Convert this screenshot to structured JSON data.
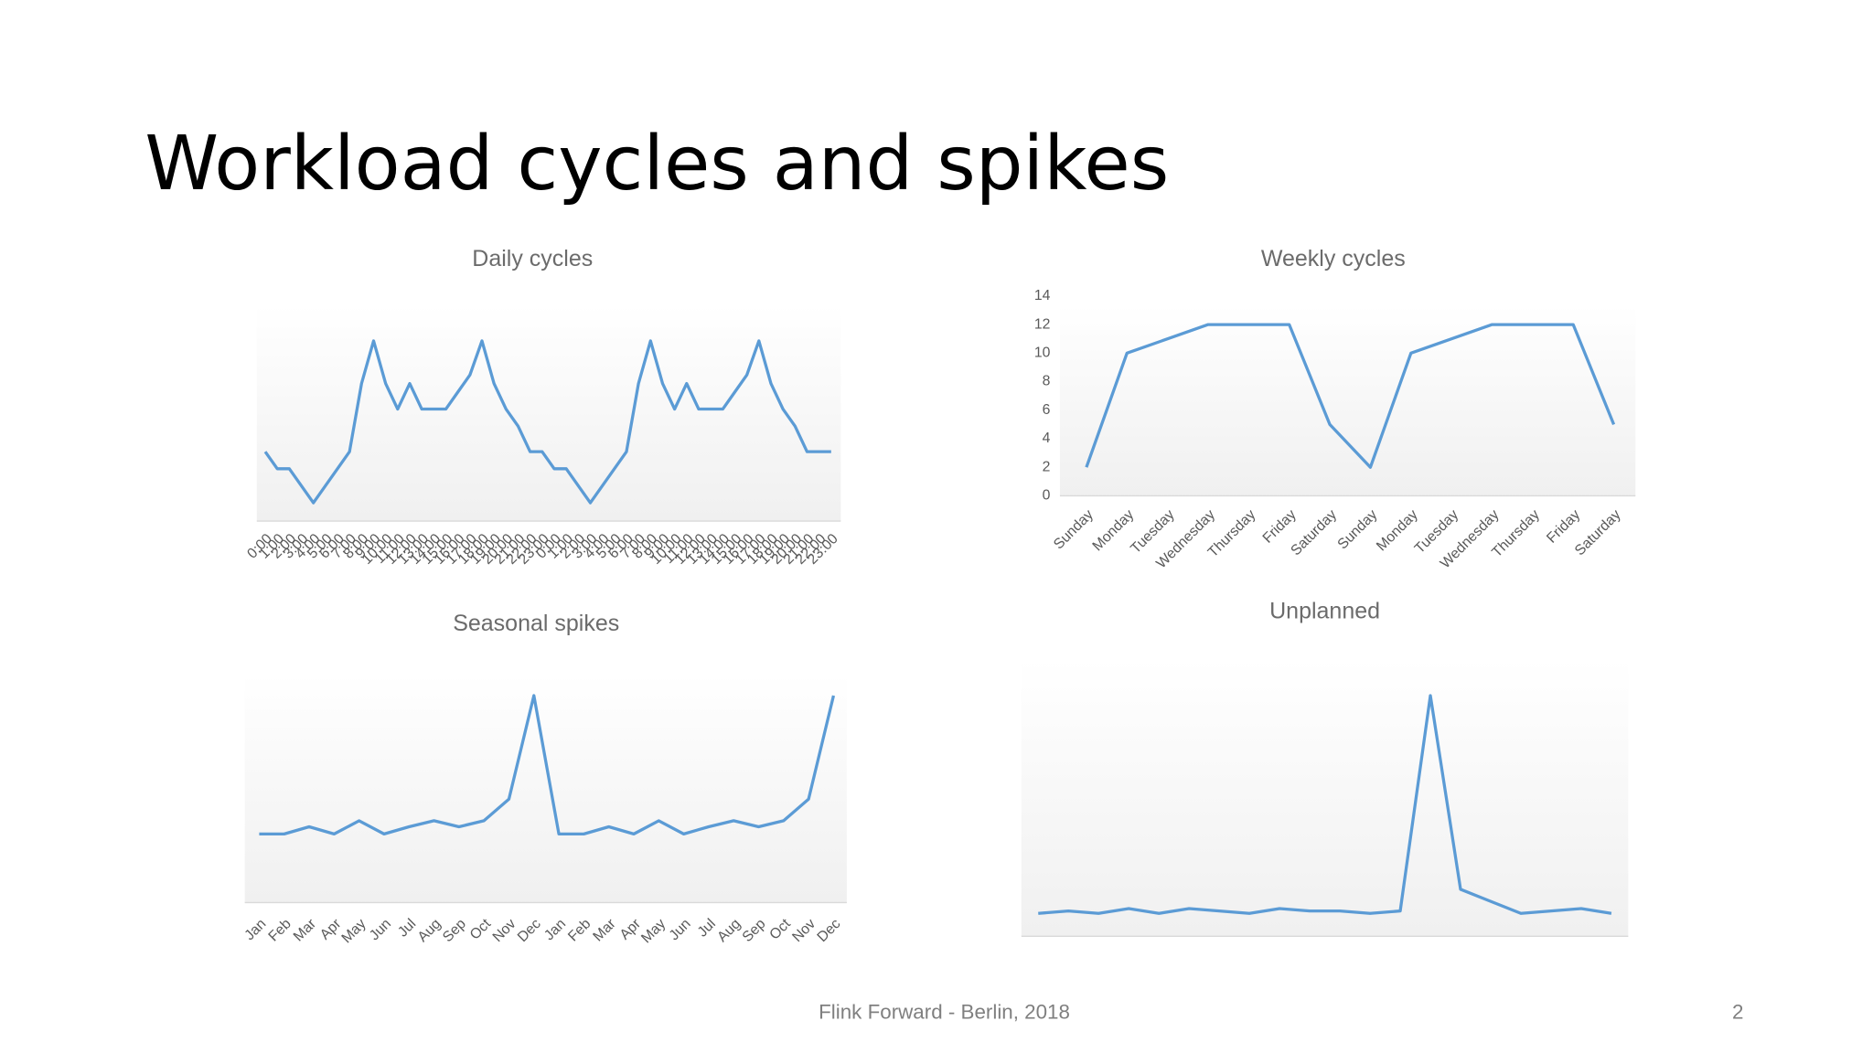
{
  "title": "Workload cycles and spikes",
  "footer": "Flink Forward - Berlin, 2018",
  "page_number": "2",
  "chart_data": [
    {
      "type": "line",
      "title": "Daily cycles",
      "color": "#5b9bd5",
      "categories": [
        "0:00",
        "1:00",
        "2:00",
        "3:00",
        "4:00",
        "5:00",
        "6:00",
        "7:00",
        "8:00",
        "9:00",
        "10:00",
        "11:00",
        "12:00",
        "13:00",
        "14:00",
        "15:00",
        "16:00",
        "17:00",
        "18:00",
        "19:00",
        "20:00",
        "21:00",
        "22:00",
        "23:00",
        "0:00",
        "1:00",
        "2:00",
        "3:00",
        "4:00",
        "5:00",
        "6:00",
        "7:00",
        "8:00",
        "9:00",
        "10:00",
        "11:00",
        "12:00",
        "13:00",
        "14:00",
        "15:00",
        "16:00",
        "17:00",
        "18:00",
        "19:00",
        "20:00",
        "21:00",
        "22:00",
        "23:00"
      ],
      "values": [
        4,
        3,
        3,
        2,
        1,
        2,
        3,
        4,
        8,
        10.5,
        8,
        6.5,
        8,
        6.5,
        6.5,
        6.5,
        7.5,
        8.5,
        10.5,
        8,
        6.5,
        5.5,
        4,
        4,
        3,
        3,
        2,
        1,
        2,
        3,
        4,
        8,
        10.5,
        8,
        6.5,
        8,
        6.5,
        6.5,
        6.5,
        7.5,
        8.5,
        10.5,
        8,
        6.5,
        5.5,
        4,
        4,
        4
      ],
      "ylim": [
        0,
        12
      ]
    },
    {
      "type": "line",
      "title": "Weekly cycles",
      "color": "#5b9bd5",
      "categories": [
        "Sunday",
        "Monday",
        "Tuesday",
        "Wednesday",
        "Thursday",
        "Friday",
        "Saturday",
        "Sunday",
        "Monday",
        "Tuesday",
        "Wednesday",
        "Thursday",
        "Friday",
        "Saturday"
      ],
      "values": [
        2,
        10,
        11,
        12,
        12,
        12,
        5,
        2,
        10,
        11,
        12,
        12,
        12,
        5
      ],
      "ylim": [
        0,
        14
      ],
      "yticks": [
        0,
        2,
        4,
        6,
        8,
        10,
        12,
        14
      ]
    },
    {
      "type": "line",
      "title": "Seasonal spikes",
      "color": "#5b9bd5",
      "categories": [
        "Jan",
        "Feb",
        "Mar",
        "Apr",
        "May",
        "Jun",
        "Jul",
        "Aug",
        "Sep",
        "Oct",
        "Nov",
        "Dec",
        "Jan",
        "Feb",
        "Mar",
        "Apr",
        "May",
        "Jun",
        "Jul",
        "Aug",
        "Sep",
        "Oct",
        "Nov",
        "Dec"
      ],
      "values": [
        5.7,
        5.7,
        6.3,
        5.7,
        6.8,
        5.7,
        6.3,
        6.8,
        6.3,
        6.8,
        8.6,
        17.2,
        5.7,
        5.7,
        6.3,
        5.7,
        6.8,
        5.7,
        6.3,
        6.8,
        6.3,
        6.8,
        8.6,
        17.2
      ],
      "ylim": [
        0,
        18
      ]
    },
    {
      "type": "line",
      "title": "Unplanned",
      "color": "#5b9bd5",
      "values": [
        1.9,
        2.1,
        1.9,
        2.3,
        1.9,
        2.3,
        2.1,
        1.9,
        2.3,
        2.1,
        2.1,
        1.9,
        2.1,
        20,
        3.9,
        2.9,
        1.9,
        2.1,
        2.3,
        1.9
      ],
      "ylim": [
        0,
        22
      ]
    }
  ]
}
